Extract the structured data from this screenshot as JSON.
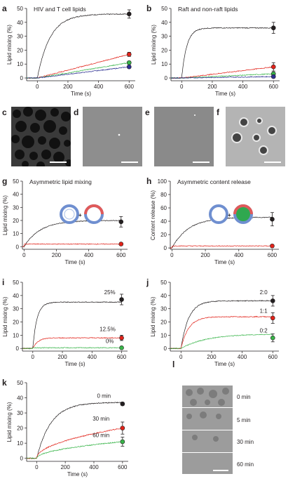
{
  "figure": {
    "panel_letters": [
      "a",
      "b",
      "c",
      "d",
      "e",
      "f",
      "g",
      "h",
      "i",
      "j",
      "k",
      "l"
    ],
    "colors": {
      "black": "#231f20",
      "red": "#e2231a",
      "green": "#39b54a",
      "blue": "#2e3192"
    },
    "image_panel_l": {
      "labels": [
        "0 min",
        "5 min",
        "30 min",
        "60 min"
      ]
    }
  },
  "chart_data": [
    {
      "panel": "a",
      "type": "line",
      "title": "HIV and T cell lipids",
      "xlabel": "Time (s)",
      "ylabel": "Lipid mixing (%)",
      "xlim": [
        -70,
        640
      ],
      "ylim": [
        -2,
        50
      ],
      "xticks": [
        0,
        200,
        400,
        600
      ],
      "yticks": [
        0,
        10,
        20,
        30,
        40,
        50
      ],
      "series": [
        {
          "color": "#231f20",
          "plateau": 46,
          "end": 46,
          "err": 3,
          "k": 0.012,
          "tau": 150,
          "form": "exp"
        },
        {
          "color": "#e2231a",
          "plateau": 17,
          "end": 17,
          "err": 1.5,
          "k": 0.6,
          "tau": 600,
          "form": "lin"
        },
        {
          "color": "#39b54a",
          "plateau": 11,
          "end": 11,
          "err": 1,
          "k": 0.5,
          "tau": 600,
          "form": "lin"
        },
        {
          "color": "#2e3192",
          "plateau": 8,
          "end": 8,
          "err": 1,
          "k": 0.5,
          "tau": 600,
          "form": "lin"
        }
      ]
    },
    {
      "panel": "b",
      "type": "line",
      "title": "Raft and non-raft lipids",
      "xlabel": "Time (s)",
      "ylabel": "Lipid mixing (%)",
      "xlim": [
        -70,
        640
      ],
      "ylim": [
        -2,
        50
      ],
      "xticks": [
        0,
        200,
        400,
        600
      ],
      "yticks": [
        0,
        10,
        20,
        30,
        40,
        50
      ],
      "series": [
        {
          "color": "#231f20",
          "plateau": 36,
          "end": 36,
          "err": 4,
          "k": 0.03,
          "tau": 40,
          "form": "exp"
        },
        {
          "color": "#e2231a",
          "plateau": 8,
          "end": 8,
          "err": 3,
          "k": 0.3,
          "tau": 600,
          "form": "lin"
        },
        {
          "color": "#39b54a",
          "plateau": 3,
          "end": 3,
          "err": 1,
          "k": 0.3,
          "tau": 600,
          "form": "lin"
        },
        {
          "color": "#2e3192",
          "plateau": 1,
          "end": 1,
          "err": 1,
          "k": 0.3,
          "tau": 600,
          "form": "lin"
        }
      ]
    },
    {
      "panel": "g",
      "type": "line",
      "title": "Asymmetric lipid mixing",
      "xlabel": "Time (s)",
      "ylabel": "Lipid mixing (%)",
      "xlim": [
        -10,
        640
      ],
      "ylim": [
        -2,
        50
      ],
      "xticks": [
        0,
        200,
        400,
        600
      ],
      "yticks": [
        0,
        10,
        20,
        30,
        40,
        50
      ],
      "series": [
        {
          "color": "#231f20",
          "plateau": 20,
          "end": 19,
          "err": 4,
          "k": 0.01,
          "tau": 120,
          "form": "exp"
        },
        {
          "color": "#e2231a",
          "plateau": 2,
          "end": 2,
          "err": 1,
          "k": 0.1,
          "tau": 600,
          "form": "flat"
        }
      ]
    },
    {
      "panel": "h",
      "type": "line",
      "title": "Asymmetric content release",
      "xlabel": "Time (s)",
      "ylabel": "Content release (%)",
      "xlim": [
        -10,
        640
      ],
      "ylim": [
        -2,
        100
      ],
      "xticks": [
        0,
        200,
        400,
        600
      ],
      "yticks": [
        0,
        20,
        40,
        60,
        80,
        100
      ],
      "series": [
        {
          "color": "#231f20",
          "plateau": 46,
          "end": 43,
          "err": 10,
          "k": 0.01,
          "tau": 120,
          "form": "exp"
        },
        {
          "color": "#e2231a",
          "plateau": 3,
          "end": 3,
          "err": 2,
          "k": 0.1,
          "tau": 600,
          "form": "flat"
        }
      ]
    },
    {
      "panel": "i",
      "type": "line",
      "title": "",
      "xlabel": "Time (s)",
      "ylabel": "Lipid mixing (%)",
      "xlim": [
        -70,
        640
      ],
      "ylim": [
        -2,
        50
      ],
      "xticks": [
        0,
        200,
        400,
        600
      ],
      "yticks": [
        0,
        10,
        20,
        30,
        40,
        50
      ],
      "annotations": [
        {
          "text": "25%",
          "x": 520,
          "y": 41
        },
        {
          "text": "12.5%",
          "x": 505,
          "y": 13
        },
        {
          "text": "0%",
          "x": 520,
          "y": 4
        }
      ],
      "series": [
        {
          "color": "#231f20",
          "plateau": 35,
          "end": 37,
          "err": 4,
          "k": 0.035,
          "tau": 40,
          "form": "exp"
        },
        {
          "color": "#e2231a",
          "plateau": 8,
          "end": 8,
          "err": 2,
          "k": 0.03,
          "tau": 40,
          "form": "exp"
        },
        {
          "color": "#39b54a",
          "plateau": 0.5,
          "end": 0.5,
          "err": 0.8,
          "k": 0.1,
          "tau": 600,
          "form": "flat"
        }
      ]
    },
    {
      "panel": "j",
      "type": "line",
      "title": "",
      "xlabel": "Time (s)",
      "ylabel": "Lipid mixing (%)",
      "xlim": [
        -70,
        640
      ],
      "ylim": [
        -2,
        50
      ],
      "xticks": [
        0,
        200,
        400,
        600
      ],
      "yticks": [
        0,
        10,
        20,
        30,
        40,
        50
      ],
      "annotations": [
        {
          "text": "2:0",
          "x": 540,
          "y": 41
        },
        {
          "text": "1:1",
          "x": 540,
          "y": 27
        },
        {
          "text": "0:2",
          "x": 540,
          "y": 12
        }
      ],
      "series": [
        {
          "color": "#231f20",
          "plateau": 36,
          "end": 36,
          "err": 4,
          "k": 0.02,
          "tau": 60,
          "form": "exp"
        },
        {
          "color": "#e2231a",
          "plateau": 24,
          "end": 23,
          "err": 4,
          "k": 0.02,
          "tau": 60,
          "form": "exp"
        },
        {
          "color": "#39b54a",
          "plateau": 11,
          "end": 8,
          "err": 3,
          "k": 0.006,
          "tau": 300,
          "form": "exp"
        }
      ]
    },
    {
      "panel": "k",
      "type": "line",
      "title": "",
      "xlabel": "Time (s)",
      "ylabel": "Lipid mixing (%)",
      "xlim": [
        -70,
        640
      ],
      "ylim": [
        -2,
        50
      ],
      "xticks": [
        0,
        200,
        400,
        600
      ],
      "yticks": [
        0,
        10,
        20,
        30,
        40,
        50
      ],
      "annotations": [
        {
          "text": "0 min",
          "x": 470,
          "y": 40
        },
        {
          "text": "30 min",
          "x": 450,
          "y": 25
        },
        {
          "text": "60 min",
          "x": 450,
          "y": 14
        }
      ],
      "series": [
        {
          "color": "#231f20",
          "plateau": 37,
          "end": 36,
          "err": 1,
          "k": 0.01,
          "tau": 100,
          "form": "exp"
        },
        {
          "color": "#e2231a",
          "plateau": 20,
          "end": 20,
          "err": 4,
          "k": 0.5,
          "tau": 600,
          "form": "sqrt"
        },
        {
          "color": "#39b54a",
          "plateau": 11,
          "end": 11,
          "err": 3,
          "k": 0.5,
          "tau": 600,
          "form": "sqrt"
        }
      ]
    }
  ]
}
